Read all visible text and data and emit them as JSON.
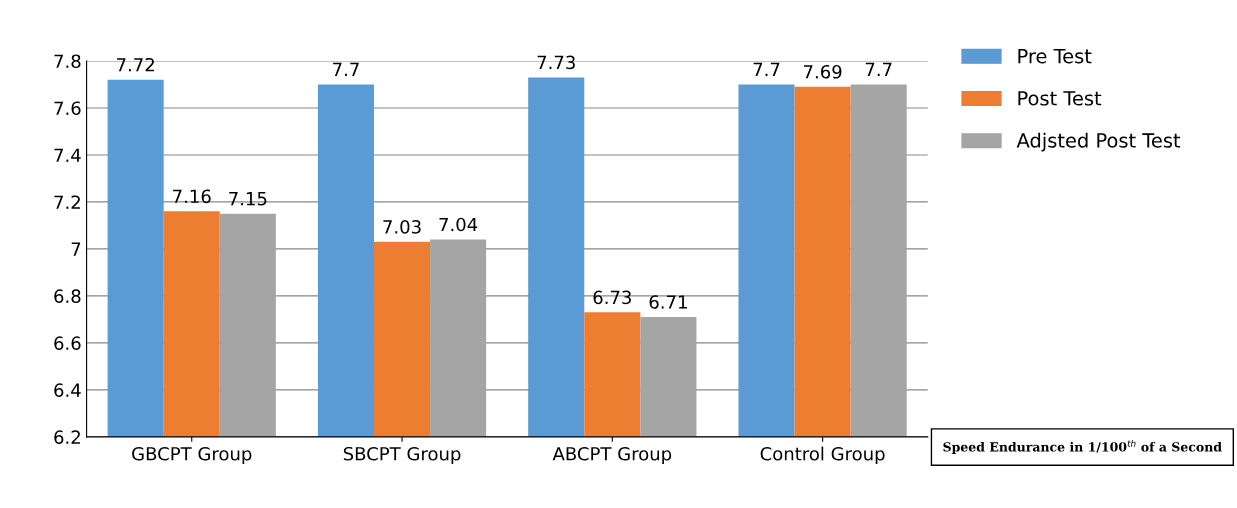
{
  "chart_data": {
    "type": "bar",
    "categories": [
      "GBCPT Group",
      "SBCPT Group",
      "ABCPT Group",
      "Control Group"
    ],
    "series": [
      {
        "name": "Pre Test",
        "color": "#5b9bd5",
        "values": [
          7.72,
          7.7,
          7.73,
          7.7
        ]
      },
      {
        "name": "Post Test",
        "color": "#ed7d31",
        "values": [
          7.16,
          7.03,
          6.73,
          7.69
        ]
      },
      {
        "name": "Adjsted Post Test",
        "color": "#a5a5a5",
        "values": [
          7.15,
          7.04,
          6.71,
          7.7
        ]
      }
    ],
    "ylim": [
      6.2,
      7.8
    ],
    "yticks": [
      6.2,
      6.4,
      6.6,
      6.8,
      7,
      7.2,
      7.4,
      7.6,
      7.8
    ],
    "grid": "y",
    "legend": "right",
    "data_labels": true,
    "annotations": [
      "Speed Endurance in 1/100$^{th}$ of a Second"
    ]
  }
}
